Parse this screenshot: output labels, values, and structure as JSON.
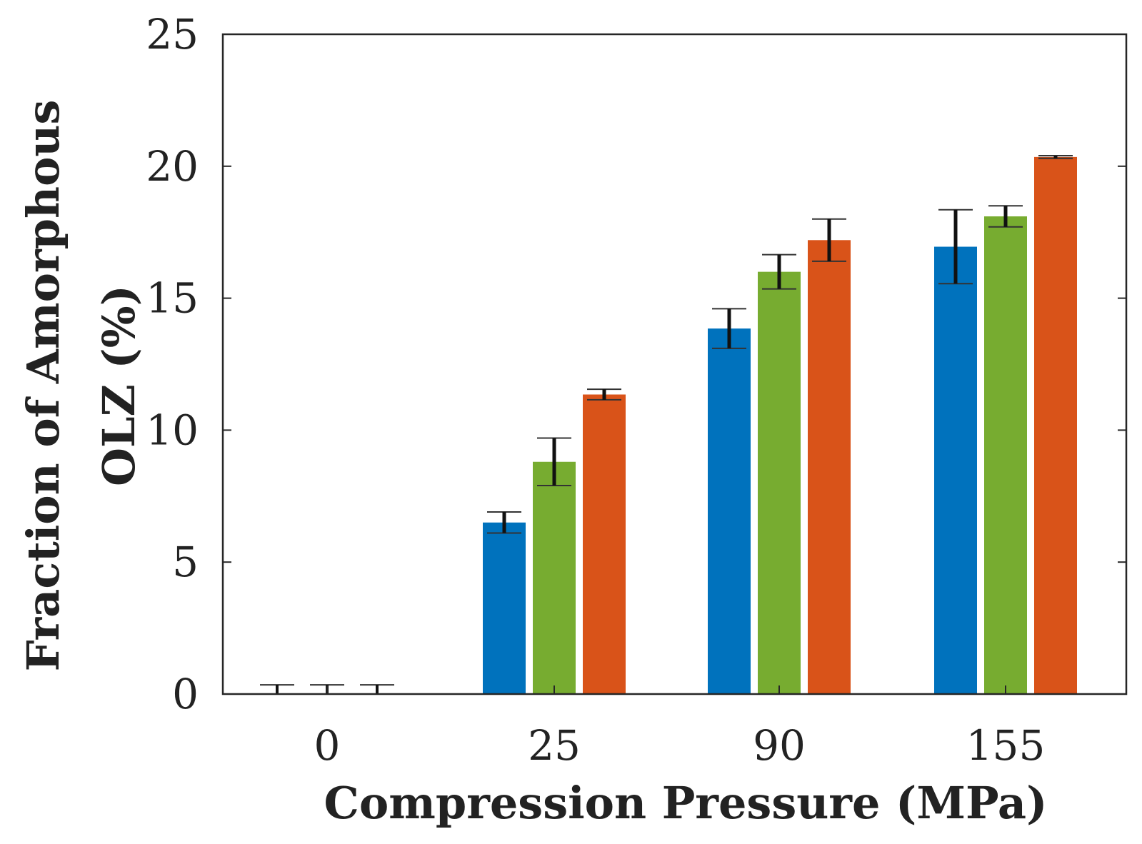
{
  "chart_data": {
    "type": "bar",
    "title": "",
    "xlabel": "Compression Pressure (MPa)",
    "ylabel_line1": "Fraction of Amorphous",
    "ylabel_line2": "OLZ (%)",
    "ylim": [
      0,
      25
    ],
    "yticks": [
      0,
      5,
      10,
      15,
      20,
      25
    ],
    "ytick_labels": [
      "0",
      "5",
      "10",
      "15",
      "20",
      "25"
    ],
    "categories": [
      "0",
      "25",
      "90",
      "155"
    ],
    "legend": "none",
    "grid": false,
    "series": [
      {
        "name": "series-1",
        "color": "#0072BD",
        "values": [
          0,
          6.5,
          13.85,
          16.95
        ],
        "errors": [
          0,
          0.4,
          0.75,
          1.4
        ]
      },
      {
        "name": "series-2",
        "color": "#77AC30",
        "values": [
          0,
          8.8,
          16.0,
          18.1
        ],
        "errors": [
          0,
          0.9,
          0.65,
          0.4
        ]
      },
      {
        "name": "series-3",
        "color": "#D95319",
        "values": [
          0,
          11.35,
          17.2,
          20.35
        ],
        "errors": [
          0,
          0.2,
          0.8,
          0.05
        ]
      }
    ]
  }
}
